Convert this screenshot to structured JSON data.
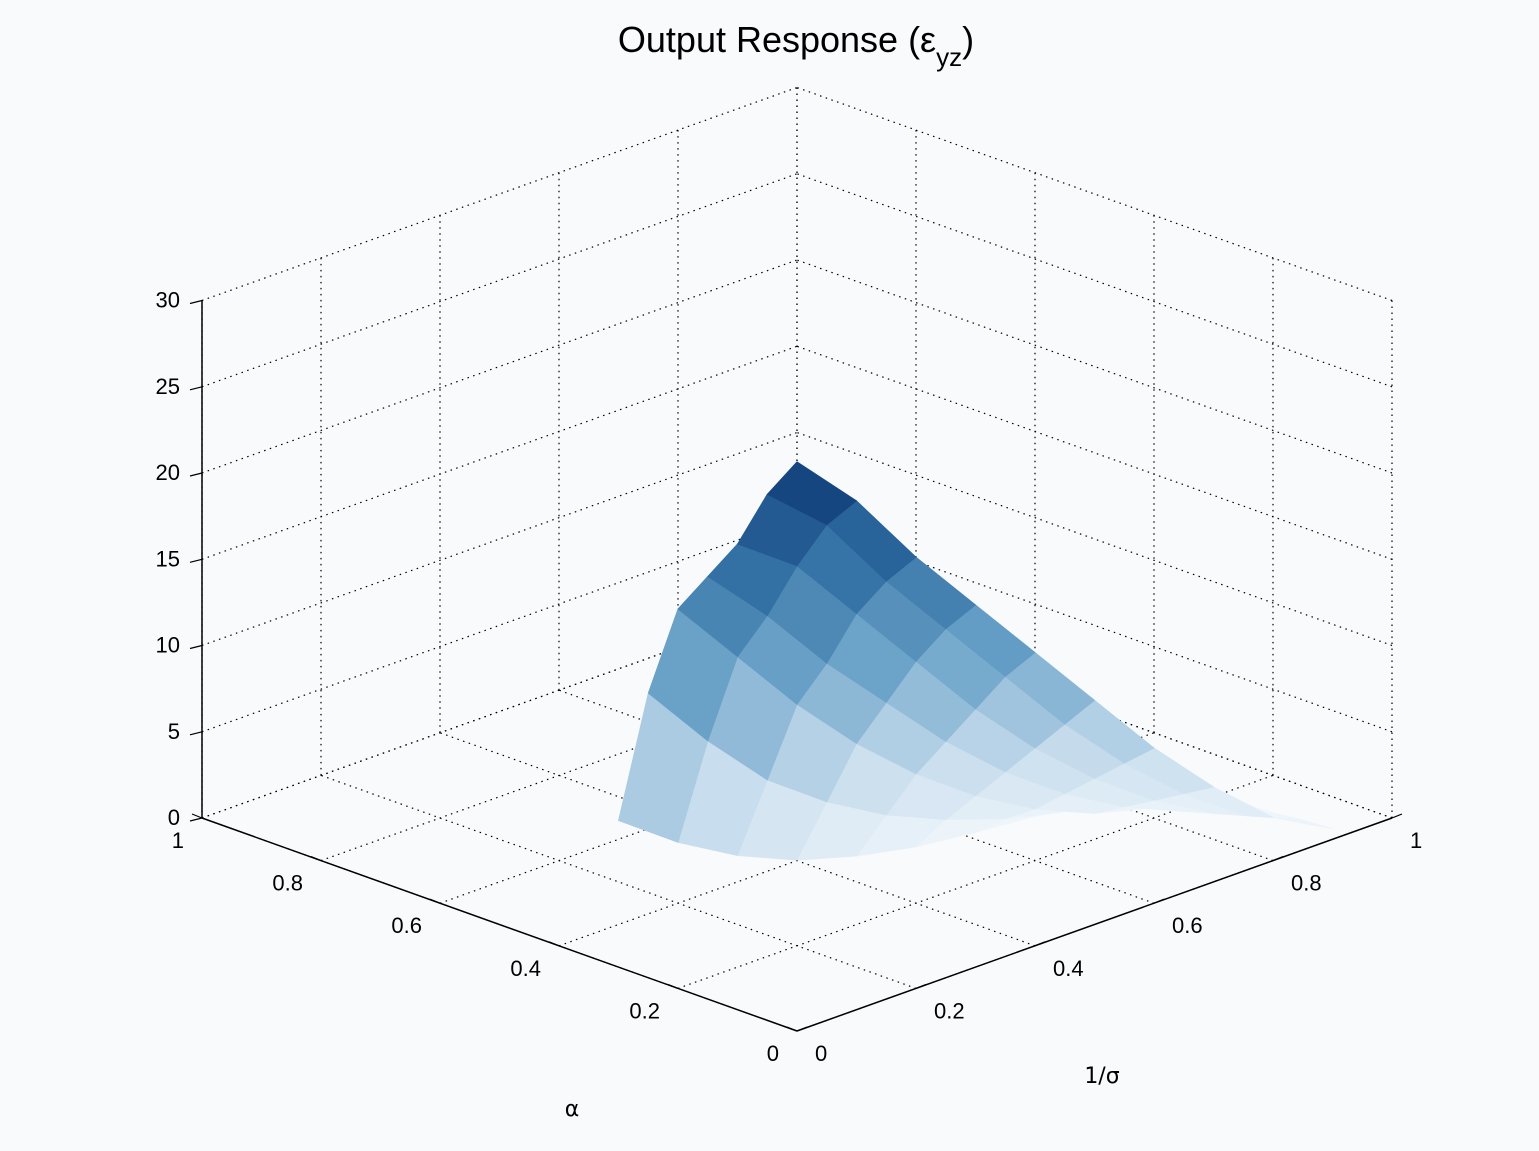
{
  "chart_data": {
    "type": "surface",
    "title": "Output Response (ε",
    "title_sub": "yz",
    "title_close": ")",
    "xlabel": "α",
    "ylabel": "1/σ",
    "zlabel": "",
    "xlim": [
      0,
      1
    ],
    "ylim": [
      0,
      1
    ],
    "zlim": [
      0,
      30
    ],
    "x_ticks": [
      "0",
      "0.2",
      "0.4",
      "0.6",
      "0.8",
      "1"
    ],
    "y_ticks": [
      "0",
      "0.2",
      "0.4",
      "0.6",
      "0.8",
      "1"
    ],
    "z_ticks": [
      "0",
      "5",
      "10",
      "15",
      "20",
      "25",
      "30"
    ],
    "x_tick_values": [
      0,
      0.2,
      0.4,
      0.6,
      0.8,
      1
    ],
    "y_tick_values": [
      0,
      0.2,
      0.4,
      0.6,
      0.8,
      1
    ],
    "z_tick_values": [
      0,
      5,
      10,
      15,
      20,
      25,
      30
    ],
    "grid": true,
    "colormap": [
      "#f4f9fd",
      "#c6dcec",
      "#6fa6cb",
      "#2f6ea3",
      "#08306b"
    ],
    "surface": {
      "alpha": [
        0.3,
        0.25,
        0.2,
        0.15,
        0.1,
        0.05,
        0.0
      ],
      "inv_sigma": [
        0.0,
        0.1,
        0.2,
        0.3,
        0.4,
        0.5,
        0.6,
        0.7,
        0.8,
        0.9
      ],
      "z": [
        [
          8.5,
          6.0,
          4.0,
          2.5,
          1.5,
          0.8,
          0.4,
          0.1,
          0.0,
          0.0
        ],
        [
          16.5,
          12.5,
          9.0,
          6.5,
          4.5,
          3.0,
          1.8,
          1.0,
          0.4,
          0.1
        ],
        [
          22.0,
          18.0,
          14.0,
          10.5,
          7.5,
          5.0,
          3.0,
          1.5,
          0.6,
          0.1
        ],
        [
          24.5,
          21.0,
          17.0,
          13.5,
          10.0,
          7.0,
          4.5,
          2.5,
          1.0,
          0.2
        ],
        [
          27.0,
          24.5,
          20.5,
          16.5,
          12.5,
          9.0,
          6.0,
          3.5,
          1.5,
          0.3
        ],
        [
          30.5,
          27.5,
          23.0,
          19.0,
          15.0,
          11.0,
          7.5,
          4.5,
          2.0,
          0.5
        ],
        [
          33.0,
          29.5,
          25.0,
          21.0,
          17.0,
          13.0,
          9.0,
          5.5,
          2.5,
          0.6
        ]
      ]
    }
  }
}
